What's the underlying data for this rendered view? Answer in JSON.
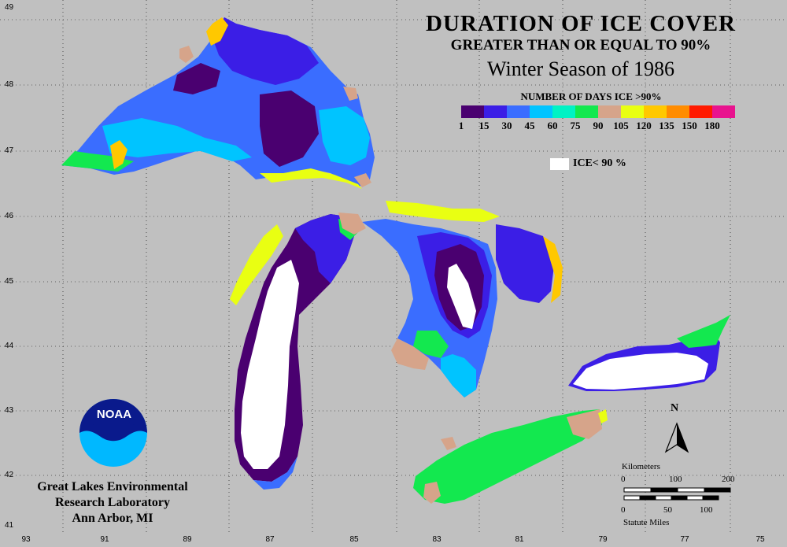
{
  "title": "DURATION OF ICE COVER",
  "subtitle": "GREATER THAN OR EQUAL TO 90%",
  "season": "Winter Season of 1986",
  "legend": {
    "title": "NUMBER OF DAYS ICE >90%",
    "colors": [
      "#4a0070",
      "#3b1ee6",
      "#3a6dff",
      "#00c4ff",
      "#00f2c4",
      "#13e84f",
      "#d6a48a",
      "#e9ff12",
      "#ffc800",
      "#ff8c00",
      "#ff1a00",
      "#e8138e"
    ],
    "ticks": [
      "1",
      "15",
      "30",
      "45",
      "60",
      "75",
      "90",
      "105",
      "120",
      "135",
      "150",
      "180"
    ],
    "ice_label": "ICE< 90 %"
  },
  "credit": {
    "line1": "Great Lakes Environmental",
    "line2": "Research Laboratory",
    "line3": "Ann Arbor, MI"
  },
  "logo_text": "NOAA",
  "north_label": "N",
  "scale": {
    "km_label": "Kilometers",
    "km_ticks": [
      "0",
      "100",
      "200"
    ],
    "mi_ticks": [
      "0",
      "50",
      "100"
    ],
    "mi_label": "Statute Miles"
  },
  "lat_labels": [
    "49",
    "48",
    "47",
    "46",
    "45",
    "44",
    "43",
    "42",
    "41"
  ],
  "lon_labels": [
    "93",
    "91",
    "89",
    "87",
    "85",
    "83",
    "81",
    "79",
    "77",
    "75"
  ]
}
